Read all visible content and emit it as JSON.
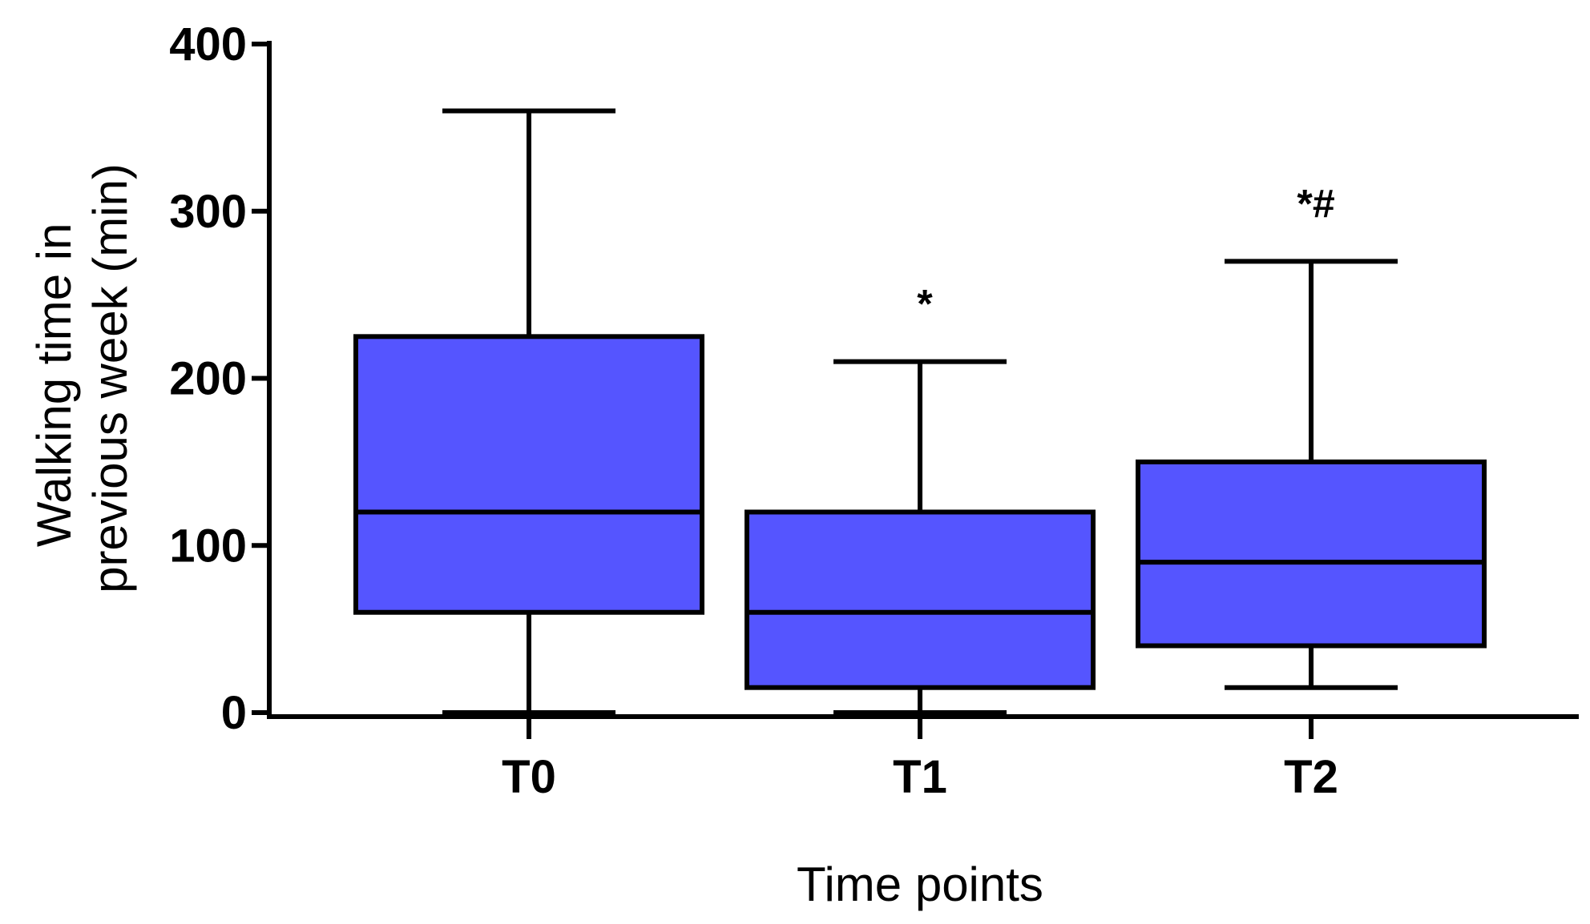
{
  "chart_data": {
    "type": "box",
    "xlabel": "Time points",
    "ylabel_line1": "Walking time in",
    "ylabel_line2": "previous week (min)",
    "ylim": [
      0,
      400
    ],
    "yticks": [
      0,
      100,
      200,
      300,
      400
    ],
    "ytick_labels": [
      "0",
      "100",
      "200",
      "300",
      "400"
    ],
    "categories": [
      "T0",
      "T1",
      "T2"
    ],
    "box_color": "#5555ff",
    "boxes": [
      {
        "category": "T0",
        "min": 0,
        "q1": 60,
        "median": 120,
        "q3": 225,
        "max": 360,
        "annotation": ""
      },
      {
        "category": "T1",
        "min": 0,
        "q1": 15,
        "median": 60,
        "q3": 120,
        "max": 210,
        "annotation": "*"
      },
      {
        "category": "T2",
        "min": 15,
        "q1": 40,
        "median": 90,
        "q3": 150,
        "max": 270,
        "annotation": "*#"
      }
    ]
  }
}
